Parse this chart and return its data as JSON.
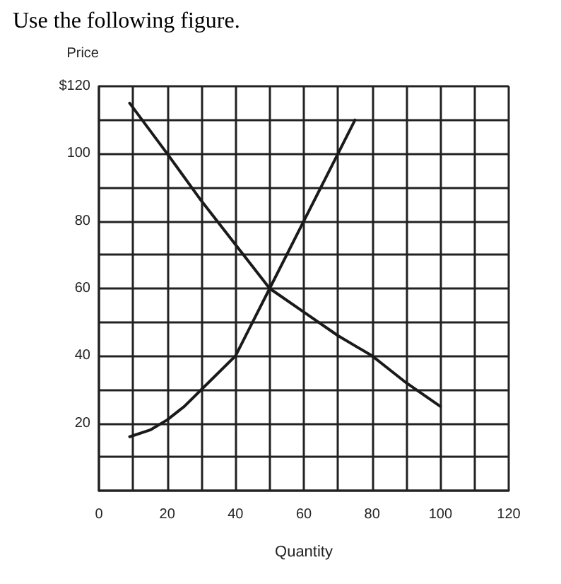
{
  "chart_data": {
    "type": "line",
    "title": "Use the following figure.",
    "xlabel": "Quantity",
    "ylabel": "Price",
    "series": [
      {
        "color": "#1a1a1a",
        "x": [
          9,
          20,
          30,
          40,
          50,
          60,
          70,
          80,
          90,
          100
        ],
        "values": [
          115,
          100,
          86,
          73,
          60,
          53,
          46,
          40,
          32,
          25
        ]
      },
      {
        "color": "#1a1a1a",
        "x": [
          9,
          15,
          20,
          25,
          30,
          40,
          45,
          50,
          60,
          65,
          70,
          75
        ],
        "values": [
          16,
          18,
          21,
          25,
          30,
          40,
          50,
          60,
          80,
          90,
          100,
          110
        ]
      }
    ],
    "xlim": [
      0,
      120
    ],
    "ylim": [
      0,
      120
    ],
    "xticks": [
      0,
      {
        "value": 10,
        "label": null
      },
      20,
      {
        "value": 30,
        "label": null
      },
      40,
      {
        "value": 50,
        "label": null
      },
      60,
      {
        "value": 70,
        "label": null
      },
      80,
      {
        "value": 90,
        "label": null
      },
      100,
      {
        "value": 110,
        "label": null
      },
      120
    ],
    "yticks": [
      {
        "value": 0,
        "label": null
      },
      {
        "value": 10,
        "label": null
      },
      20,
      {
        "value": 30,
        "label": null
      },
      40,
      {
        "value": 50,
        "label": null
      },
      60,
      {
        "value": 70,
        "label": null
      },
      80,
      {
        "value": 90,
        "label": null
      },
      100,
      {
        "value": 110,
        "label": null
      },
      {
        "value": 120,
        "label": "$120"
      }
    ],
    "grid": true,
    "marker": "none",
    "line_style": "solid"
  }
}
